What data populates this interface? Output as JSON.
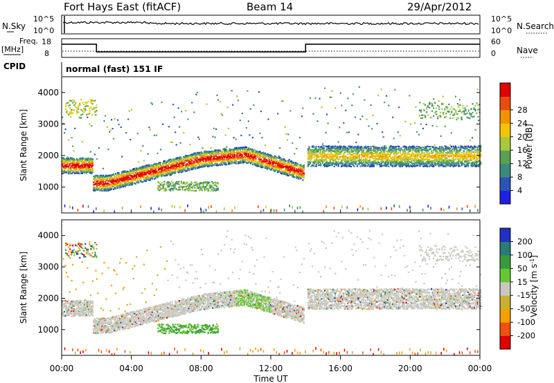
{
  "header": {
    "station": "Fort Hays East (fitACF)",
    "beam": "Beam 14",
    "date": "29/Apr/2012"
  },
  "strip_labels": {
    "nsky": "N.Sky",
    "nsearch": "N.Search",
    "freq_top": "Freq.",
    "freq_unit": "[MHz]",
    "nave": "Nave",
    "cpid": "CPID",
    "cpid_value": "normal (fast) 151 IF"
  },
  "colors": {
    "power": [
      "#1f1fe6",
      "#2b55b5",
      "#3b8a7a",
      "#58a055",
      "#a8c83c",
      "#f5c400",
      "#f39200",
      "#e84c10",
      "#e00000"
    ],
    "velocity": [
      "#e00000",
      "#f05010",
      "#f5a000",
      "#c8b030",
      "#c8c8c0",
      "#66c833",
      "#3a9a3a",
      "#2a7a7a",
      "#2030c0"
    ]
  },
  "chart_data": [
    {
      "type": "line",
      "name": "noise",
      "y_ticks_left": [
        "10^5",
        "10^0"
      ],
      "y_ticks_right": [
        "10^5",
        "10^0"
      ]
    },
    {
      "type": "line",
      "name": "frequency",
      "y_ticks_left": [
        "18",
        "8"
      ],
      "y_ticks_right": [
        "60",
        "0"
      ],
      "freq_mhz": [
        {
          "t": 0.0,
          "v": 15.5
        },
        {
          "t": 2.0,
          "v": 15.5
        },
        {
          "t": 2.0,
          "v": 10.5
        },
        {
          "t": 14.0,
          "v": 10.5
        },
        {
          "t": 14.0,
          "v": 15.5
        },
        {
          "t": 24.0,
          "v": 15.5
        }
      ]
    },
    {
      "type": "heatmap",
      "name": "power",
      "ylabel": "Slant Range [km]",
      "y_ticks": [
        1000,
        2000,
        3000,
        4000
      ],
      "colorbar_label": "Power [dB]",
      "colorbar_ticks": [
        4,
        8,
        12,
        16,
        20,
        24,
        28
      ]
    },
    {
      "type": "heatmap",
      "name": "velocity",
      "ylabel": "Slant Range [km]",
      "y_ticks": [
        1000,
        2000,
        3000,
        4000
      ],
      "colorbar_label": "Velocity [m s",
      "colorbar_label_sup": "-1",
      "colorbar_label_end": "]",
      "colorbar_ticks": [
        200,
        100,
        50,
        15,
        -15,
        -50,
        -100,
        -200
      ]
    }
  ],
  "x_axis": {
    "label": "Time UT",
    "ticks": [
      "00:00",
      "04:00",
      "08:00",
      "12:00",
      "16:00",
      "20:00",
      "00:00"
    ]
  }
}
